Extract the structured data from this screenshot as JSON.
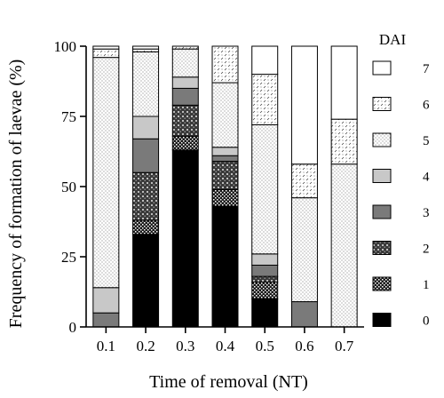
{
  "chart_data": {
    "type": "bar",
    "stacked": true,
    "percent": true,
    "xlabel": "Time of removal  (NT)",
    "ylabel": "Frequency of formation of laevae  (%)",
    "ylim": [
      0,
      100
    ],
    "yticks": [
      0,
      25,
      50,
      75,
      100
    ],
    "categories": [
      "0.1",
      "0.2",
      "0.3",
      "0.4",
      "0.5",
      "0.6",
      "0.7"
    ],
    "legend_title": "DAI",
    "legend_position": "right",
    "series": [
      {
        "name": "0",
        "pattern": "solid-black",
        "values": [
          0,
          33,
          63,
          43,
          10,
          0,
          0
        ]
      },
      {
        "name": "1",
        "pattern": "dense-crosshatch",
        "values": [
          0,
          5,
          5,
          6,
          6,
          0,
          0
        ]
      },
      {
        "name": "2",
        "pattern": "grid-dots",
        "values": [
          0,
          17,
          11,
          10,
          2,
          0,
          0
        ]
      },
      {
        "name": "3",
        "pattern": "dark-gray",
        "values": [
          5,
          12,
          6,
          2,
          4,
          9,
          0
        ]
      },
      {
        "name": "4",
        "pattern": "light-gray",
        "values": [
          9,
          8,
          4,
          3,
          4,
          0,
          0
        ]
      },
      {
        "name": "5",
        "pattern": "fine-dots",
        "values": [
          82,
          23,
          10,
          23,
          46,
          37,
          58
        ]
      },
      {
        "name": "6",
        "pattern": "sparse-dashes",
        "values": [
          3,
          1,
          1,
          13,
          18,
          12,
          16
        ]
      },
      {
        "name": "7",
        "pattern": "white",
        "values": [
          1,
          1,
          0,
          0,
          10,
          42,
          26
        ]
      }
    ],
    "grid": false
  }
}
